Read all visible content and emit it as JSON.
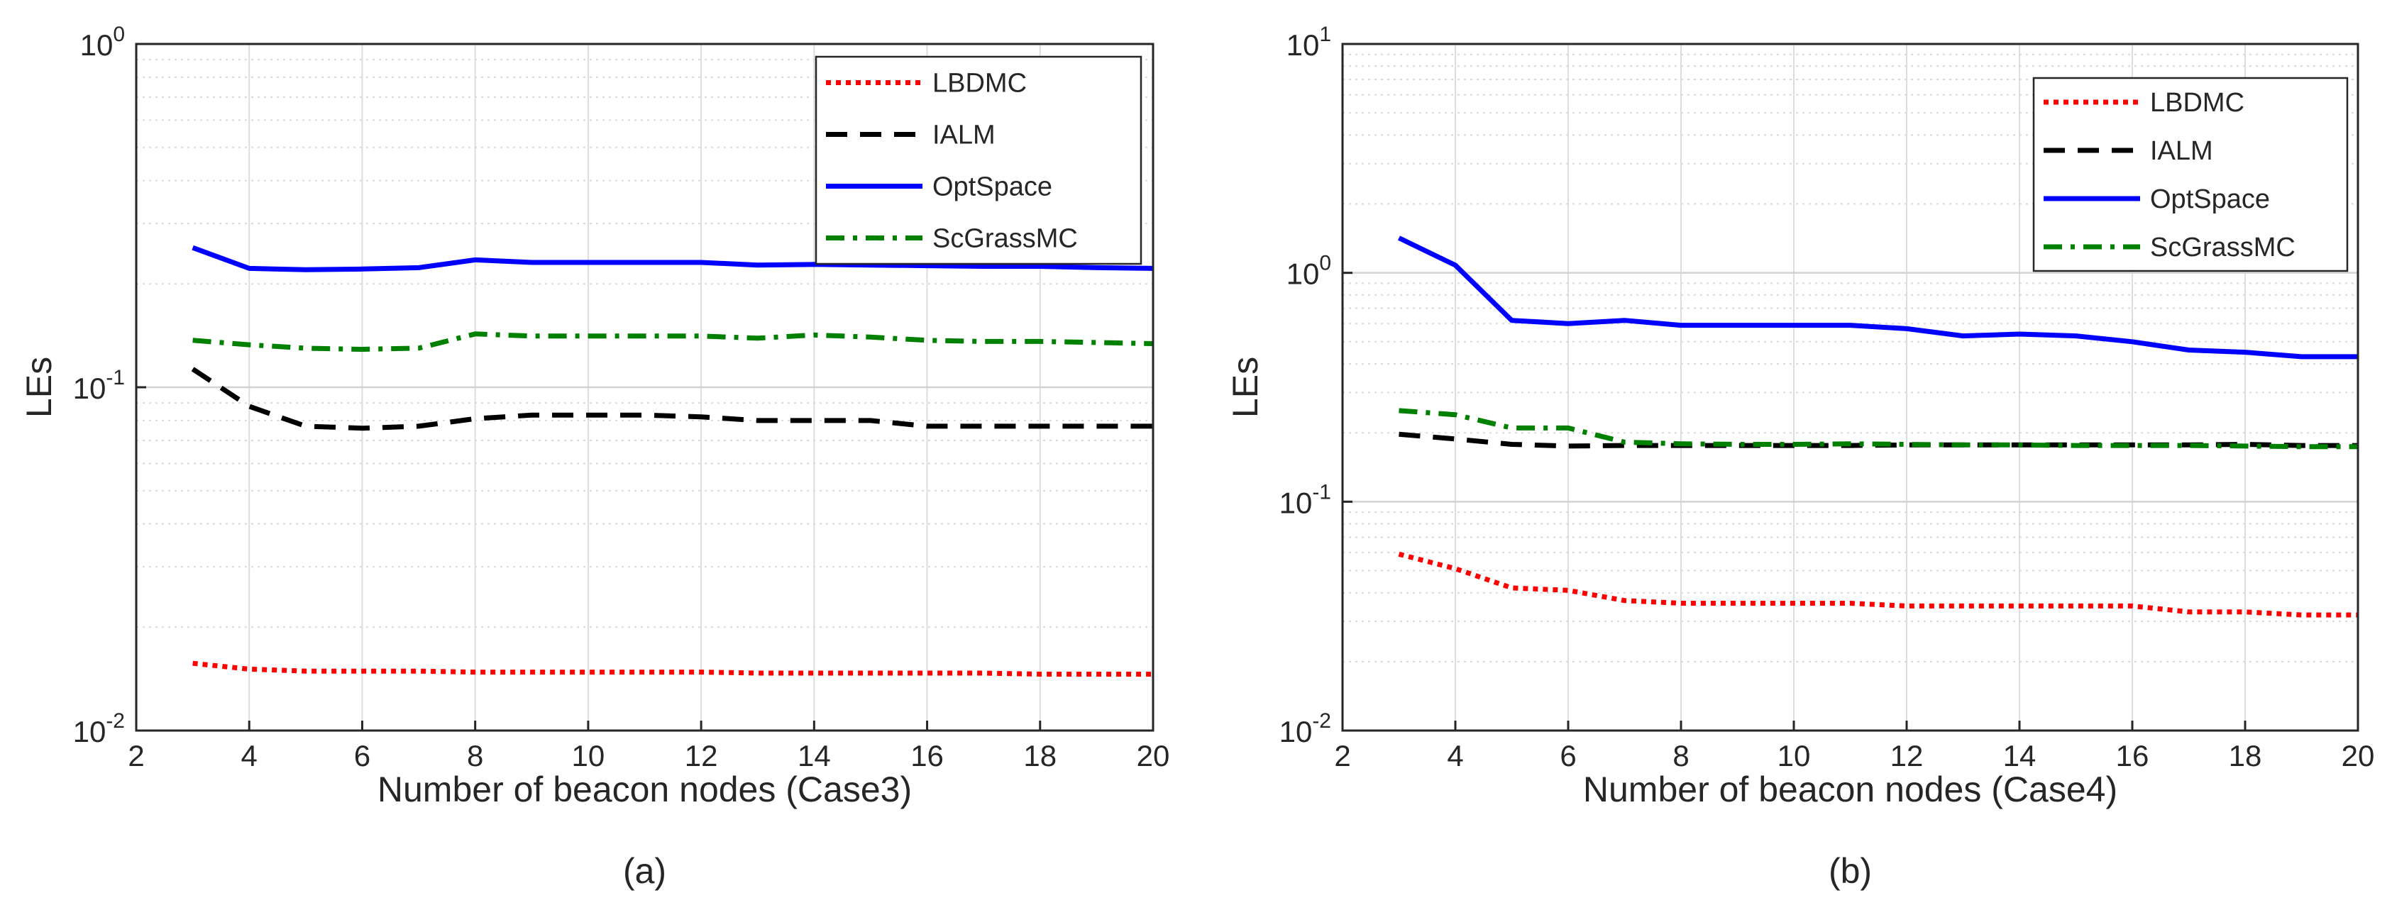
{
  "chart_data": [
    {
      "type": "line",
      "caption": "(a)",
      "xlabel": "Number of beacon nodes (Case3)",
      "ylabel": "LEs",
      "yscale": "log",
      "xlim": [
        2,
        20
      ],
      "ylim": [
        0.01,
        1
      ],
      "xticks": [
        "2",
        "4",
        "6",
        "8",
        "10",
        "12",
        "14",
        "16",
        "18",
        "20"
      ],
      "yticks": [
        {
          "base": "10",
          "exp": "-2"
        },
        {
          "base": "10",
          "exp": "-1"
        },
        {
          "base": "10",
          "exp": "0"
        }
      ],
      "grid": true,
      "legend_position": "top-right",
      "x": [
        3,
        4,
        5,
        6,
        7,
        8,
        9,
        10,
        11,
        12,
        13,
        14,
        15,
        16,
        17,
        18,
        19,
        20
      ],
      "series": [
        {
          "name": "LBDMC",
          "color": "#ff0000",
          "style": "dotted",
          "values": [
            0.0157,
            0.0151,
            0.0149,
            0.0149,
            0.0149,
            0.0148,
            0.0148,
            0.0148,
            0.0148,
            0.0148,
            0.0147,
            0.0147,
            0.0147,
            0.0147,
            0.0147,
            0.0146,
            0.0146,
            0.0146
          ]
        },
        {
          "name": "IALM",
          "color": "#000000",
          "style": "dashed",
          "values": [
            0.113,
            0.088,
            0.077,
            0.076,
            0.077,
            0.081,
            0.083,
            0.083,
            0.083,
            0.082,
            0.08,
            0.08,
            0.08,
            0.077,
            0.077,
            0.077,
            0.077,
            0.077
          ]
        },
        {
          "name": "OptSpace",
          "color": "#0000ff",
          "style": "solid",
          "values": [
            0.255,
            0.222,
            0.22,
            0.221,
            0.223,
            0.235,
            0.231,
            0.231,
            0.231,
            0.231,
            0.227,
            0.228,
            0.227,
            0.226,
            0.225,
            0.225,
            0.223,
            0.222
          ]
        },
        {
          "name": "ScGrassMC",
          "color": "#008000",
          "style": "dashdot",
          "values": [
            0.137,
            0.133,
            0.13,
            0.129,
            0.13,
            0.143,
            0.141,
            0.141,
            0.141,
            0.141,
            0.139,
            0.142,
            0.14,
            0.137,
            0.136,
            0.136,
            0.135,
            0.134
          ]
        }
      ]
    },
    {
      "type": "line",
      "caption": "(b)",
      "xlabel": "Number of beacon nodes (Case4)",
      "ylabel": "LEs",
      "yscale": "log",
      "xlim": [
        2,
        20
      ],
      "ylim": [
        0.01,
        10
      ],
      "xticks": [
        "2",
        "4",
        "6",
        "8",
        "10",
        "12",
        "14",
        "16",
        "18",
        "20"
      ],
      "yticks": [
        {
          "base": "10",
          "exp": "-2"
        },
        {
          "base": "10",
          "exp": "-1"
        },
        {
          "base": "10",
          "exp": "0"
        },
        {
          "base": "10",
          "exp": "1"
        }
      ],
      "grid": true,
      "legend_position": "top-right",
      "x": [
        3,
        4,
        5,
        6,
        7,
        8,
        9,
        10,
        11,
        12,
        13,
        14,
        15,
        16,
        17,
        18,
        19,
        20
      ],
      "series": [
        {
          "name": "LBDMC",
          "color": "#ff0000",
          "style": "dotted",
          "values": [
            0.059,
            0.051,
            0.042,
            0.041,
            0.037,
            0.036,
            0.036,
            0.036,
            0.036,
            0.035,
            0.035,
            0.035,
            0.035,
            0.035,
            0.033,
            0.033,
            0.032,
            0.032
          ]
        },
        {
          "name": "IALM",
          "color": "#000000",
          "style": "dashed",
          "values": [
            0.197,
            0.188,
            0.178,
            0.175,
            0.176,
            0.176,
            0.176,
            0.176,
            0.176,
            0.177,
            0.177,
            0.177,
            0.177,
            0.177,
            0.177,
            0.178,
            0.176,
            0.176
          ]
        },
        {
          "name": "OptSpace",
          "color": "#0000ff",
          "style": "solid",
          "values": [
            1.42,
            1.08,
            0.62,
            0.6,
            0.62,
            0.59,
            0.59,
            0.59,
            0.59,
            0.57,
            0.53,
            0.54,
            0.53,
            0.5,
            0.46,
            0.45,
            0.43,
            0.43
          ]
        },
        {
          "name": "ScGrassMC",
          "color": "#008000",
          "style": "dashdot",
          "values": [
            0.25,
            0.24,
            0.21,
            0.21,
            0.182,
            0.179,
            0.178,
            0.178,
            0.179,
            0.178,
            0.177,
            0.177,
            0.176,
            0.176,
            0.176,
            0.175,
            0.174,
            0.174
          ]
        }
      ]
    }
  ]
}
